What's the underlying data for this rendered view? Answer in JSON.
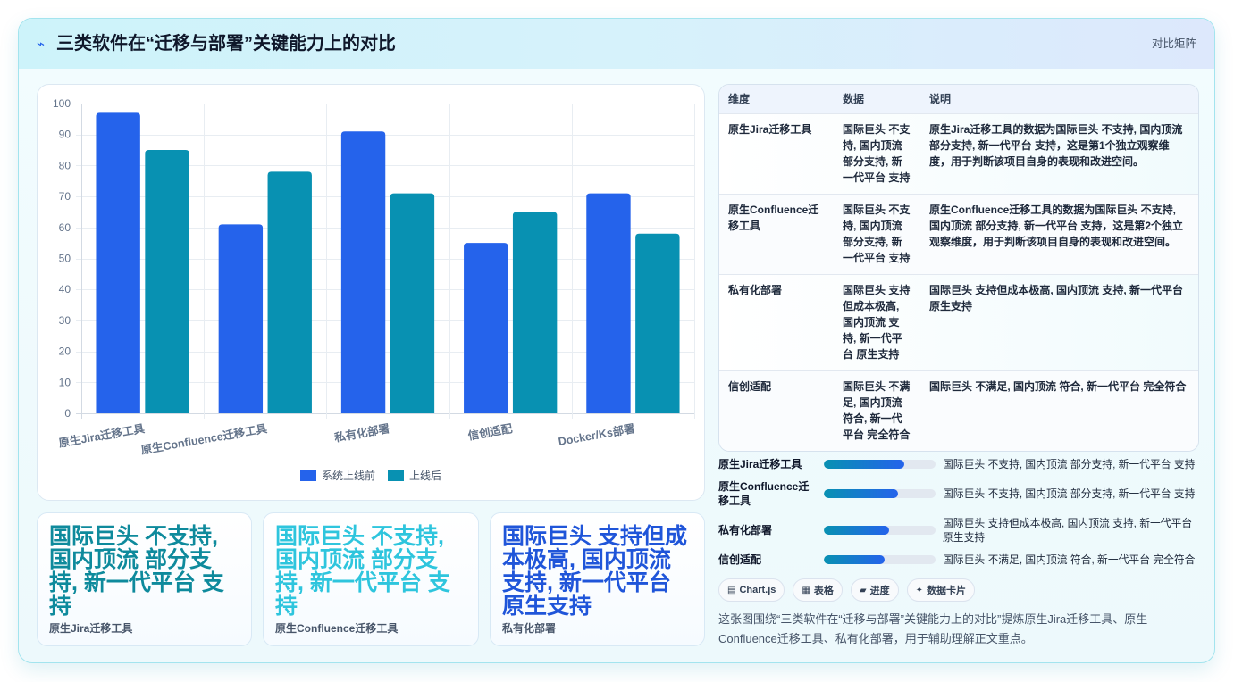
{
  "header": {
    "icon": "pulse-icon",
    "title": "三类软件在“迁移与部署”关键能力上的对比",
    "badge": "对比矩阵"
  },
  "chart_data": {
    "type": "bar",
    "categories": [
      "原生Jira迁移工具",
      "原生Confluence迁移工具",
      "私有化部署",
      "信创适配",
      "Docker/Ks部署"
    ],
    "series": [
      {
        "name": "系统上线前",
        "values": [
          97,
          61,
          91,
          55,
          71
        ],
        "color": "#2563eb"
      },
      {
        "name": "上线后",
        "values": [
          85,
          78,
          71,
          65,
          58
        ],
        "color": "#0891b2"
      }
    ],
    "ylim": [
      0,
      100
    ],
    "yticks": [
      0,
      10,
      20,
      30,
      40,
      50,
      60,
      70,
      80,
      90,
      100
    ],
    "grid": true,
    "legend": "bottom"
  },
  "table": {
    "headers": [
      "维度",
      "数据",
      "说明"
    ],
    "rows": [
      {
        "dimension": "原生Jira迁移工具",
        "data": "国际巨头 不支持, 国内顶流 部分支持, 新一代平台 支持",
        "note": "原生Jira迁移工具的数据为国际巨头 不支持, 国内顶流 部分支持, 新一代平台 支持，这是第1个独立观察维度，用于判断该项目自身的表现和改进空间。"
      },
      {
        "dimension": "原生Confluence迁移工具",
        "data": "国际巨头 不支持, 国内顶流 部分支持, 新一代平台 支持",
        "note": "原生Confluence迁移工具的数据为国际巨头 不支持, 国内顶流 部分支持, 新一代平台 支持，这是第2个独立观察维度，用于判断该项目自身的表现和改进空间。"
      },
      {
        "dimension": "私有化部署",
        "data": "国际巨头 支持但成本极高, 国内顶流 支持, 新一代平台 原生支持",
        "note": "国际巨头 支持但成本极高, 国内顶流 支持, 新一代平台 原生支持"
      },
      {
        "dimension": "信创适配",
        "data": "国际巨头 不满足, 国内顶流 符合, 新一代平台 完全符合",
        "note": "国际巨头 不满足, 国内顶流 符合, 新一代平台 完全符合"
      }
    ]
  },
  "progress": [
    {
      "label": "原生Jira迁移工具",
      "value": 0.72,
      "text": "国际巨头 不支持, 国内顶流 部分支持, 新一代平台 支持"
    },
    {
      "label": "原生Confluence迁移工具",
      "value": 0.66,
      "text": "国际巨头 不支持, 国内顶流 部分支持, 新一代平台 支持"
    },
    {
      "label": "私有化部署",
      "value": 0.58,
      "text": "国际巨头 支持但成本极高, 国内顶流 支持, 新一代平台 原生支持"
    },
    {
      "label": "信创适配",
      "value": 0.54,
      "text": "国际巨头 不满足, 国内顶流 符合, 新一代平台 完全符合"
    }
  ],
  "chips": [
    {
      "icon": "chart-icon",
      "label": "Chart.js"
    },
    {
      "icon": "table-icon",
      "label": "表格"
    },
    {
      "icon": "progress-icon",
      "label": "进度"
    },
    {
      "icon": "sparkle-icon",
      "label": "数据卡片"
    }
  ],
  "summary": "这张图围绕“三类软件在“迁移与部署”关键能力上的对比”提炼原生Jira迁移工具、原生Confluence迁移工具、私有化部署，用于辅助理解正文重点。",
  "cards": [
    {
      "value": "国际巨头 不支持, 国内顶流 部分支持, 新一代平台 支持",
      "label": "原生Jira迁移工具",
      "color": "#0e8a9c"
    },
    {
      "value": "国际巨头 不支持, 国内顶流 部分支持, 新一代平台 支持",
      "label": "原生Confluence迁移工具",
      "color": "#2ec5dd"
    },
    {
      "value": "国际巨头 支持但成本极高, 国内顶流 支持, 新一代平台 原生支持",
      "label": "私有化部署",
      "color": "#1f55d9"
    }
  ]
}
